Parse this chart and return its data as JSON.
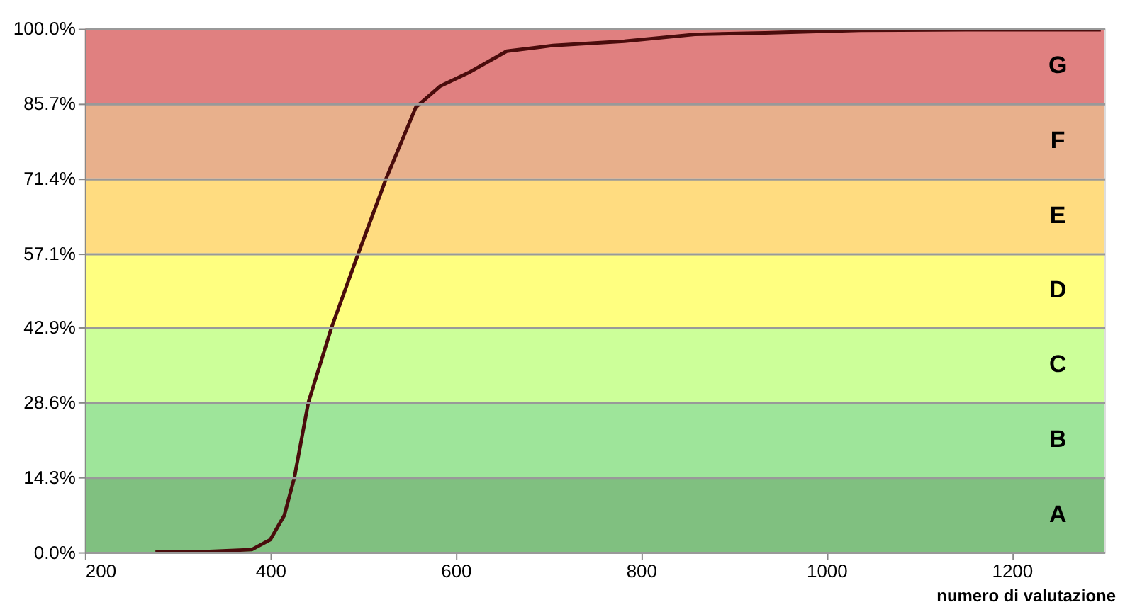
{
  "chart_data": {
    "type": "line",
    "xlabel": "numero di valutazione",
    "xlim": [
      200,
      1300
    ],
    "xticks": [
      200,
      400,
      600,
      800,
      1000,
      1200
    ],
    "ylim": [
      0,
      100
    ],
    "yticks": [
      {
        "value": 0,
        "label": "0.0%"
      },
      {
        "value": 14.3,
        "label": "14.3%"
      },
      {
        "value": 28.6,
        "label": "28.6%"
      },
      {
        "value": 42.9,
        "label": "42.9%"
      },
      {
        "value": 57.1,
        "label": "57.1%"
      },
      {
        "value": 71.4,
        "label": "71.4%"
      },
      {
        "value": 85.7,
        "label": "85.7%"
      },
      {
        "value": 100,
        "label": "100.0%"
      }
    ],
    "grid": "y",
    "marker": "none",
    "line_style": "solid",
    "bands": [
      {
        "axis": "y",
        "from": 0,
        "to": 14.3,
        "label": "A",
        "color": "#80c080"
      },
      {
        "axis": "y",
        "from": 14.3,
        "to": 28.6,
        "label": "B",
        "color": "#9ee59a"
      },
      {
        "axis": "y",
        "from": 28.6,
        "to": 42.9,
        "label": "C",
        "color": "#ccff99"
      },
      {
        "axis": "y",
        "from": 42.9,
        "to": 57.1,
        "label": "D",
        "color": "#ffff80"
      },
      {
        "axis": "y",
        "from": 57.1,
        "to": 71.4,
        "label": "E",
        "color": "#ffdc80"
      },
      {
        "axis": "y",
        "from": 71.4,
        "to": 85.7,
        "label": "F",
        "color": "#e8b08c"
      },
      {
        "axis": "y",
        "from": 85.7,
        "to": 100,
        "label": "G",
        "color": "#e08080"
      }
    ],
    "series": [
      {
        "color": "#4a0c0c",
        "x": [
          276,
          330,
          380,
          400,
          415,
          426,
          441,
          466,
          495,
          525,
          557,
          583,
          614,
          655,
          705,
          782,
          858,
          934,
          1037,
          1150,
          1296
        ],
        "values": [
          0,
          0.1,
          0.5,
          2.4,
          7,
          14.3,
          28.6,
          42.9,
          57.1,
          71.4,
          85,
          89,
          91.6,
          95.7,
          96.8,
          97.6,
          98.9,
          99.2,
          99.7,
          99.8,
          99.8
        ]
      }
    ]
  }
}
